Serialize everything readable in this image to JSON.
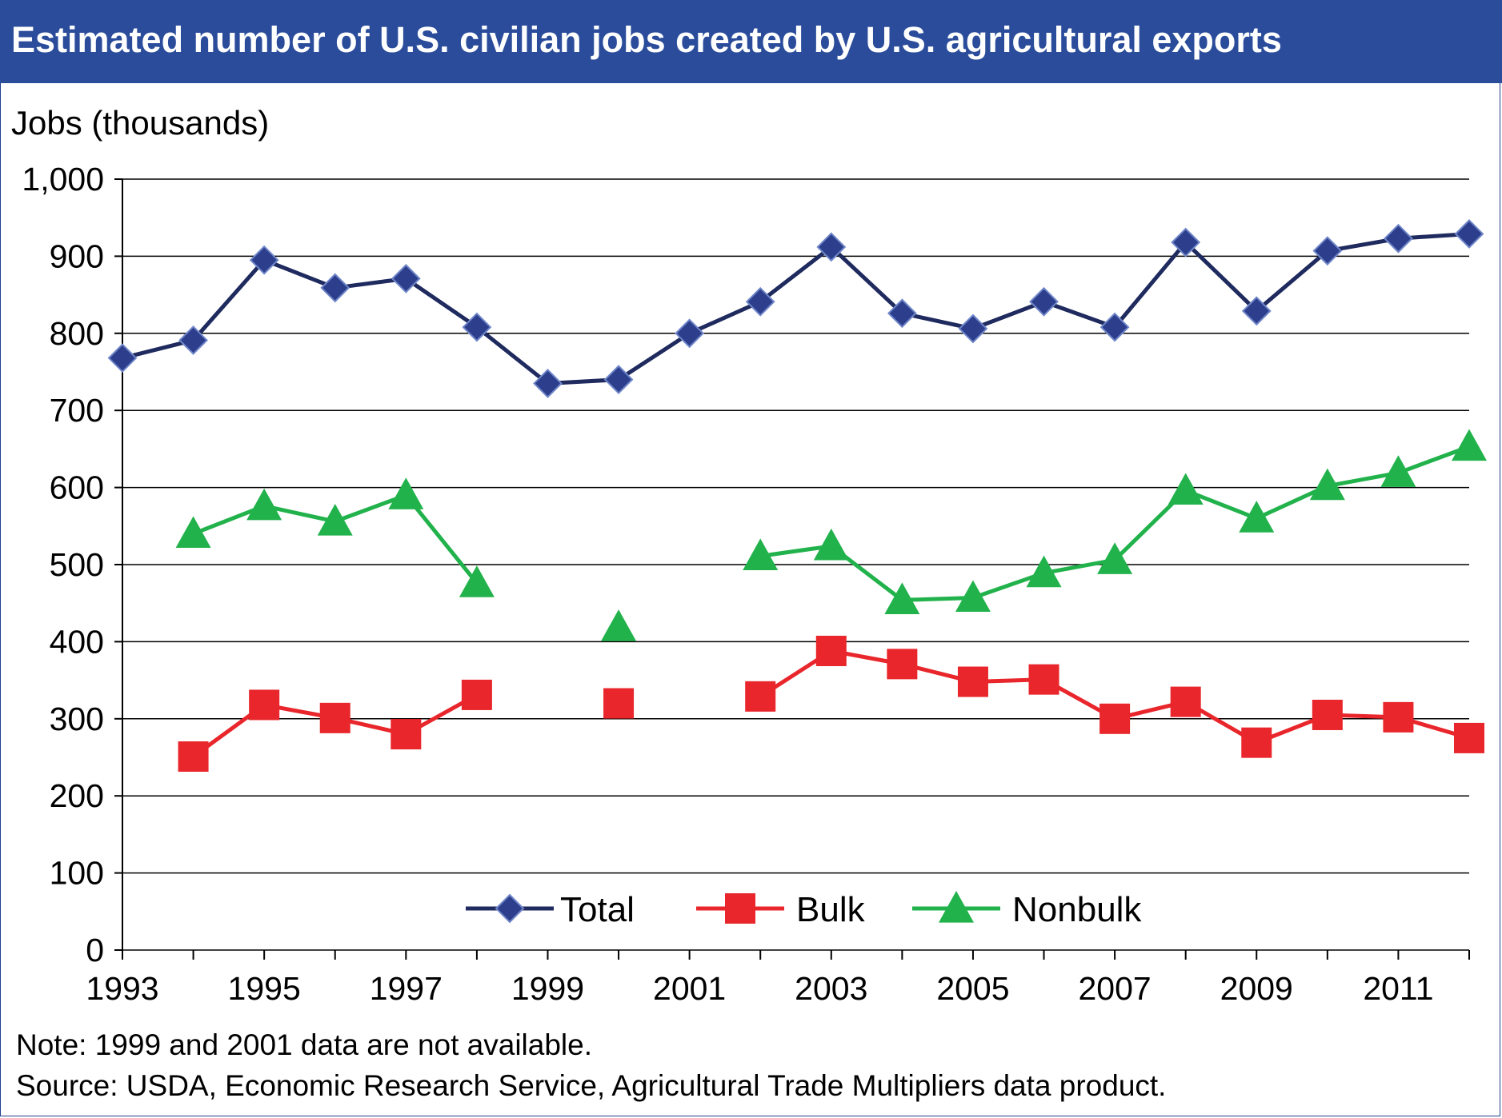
{
  "title": "Estimated number of U.S. civilian jobs created by U.S. agricultural exports",
  "note": "Note: 1999 and 2001 data are not available.",
  "source": "Source: USDA, Economic Research Service, Agricultural Trade Multipliers data product.",
  "colors": {
    "title_bar": "#2a4c9b",
    "total": "#1f2a5e",
    "total_marker": "#2d3f8c",
    "bulk": "#e8262b",
    "nonbulk": "#22b24c",
    "grid": "#000000"
  },
  "chart_data": {
    "type": "line",
    "title": "Estimated number of U.S. civilian jobs created by U.S. agricultural exports",
    "ylabel": "Jobs (thousands)",
    "xlabel": "",
    "ylim": [
      0,
      1000
    ],
    "xlim": [
      1993,
      2012
    ],
    "yticks": [
      0,
      100,
      200,
      300,
      400,
      500,
      600,
      700,
      800,
      900,
      1000
    ],
    "ytick_labels": [
      "0",
      "100",
      "200",
      "300",
      "400",
      "500",
      "600",
      "700",
      "800",
      "900",
      "1,000"
    ],
    "xticks": [
      1993,
      1995,
      1997,
      1999,
      2001,
      2003,
      2005,
      2007,
      2009,
      2011
    ],
    "xtick_labels": [
      "1993",
      "1995",
      "1997",
      "1999",
      "2001",
      "2003",
      "2005",
      "2007",
      "2009",
      "2011"
    ],
    "grid": true,
    "legend_position": "bottom-center",
    "x": [
      1993,
      1994,
      1995,
      1996,
      1997,
      1998,
      1999,
      2000,
      2001,
      2002,
      2003,
      2004,
      2005,
      2006,
      2007,
      2008,
      2009,
      2010,
      2011,
      2012
    ],
    "series": [
      {
        "name": "Total",
        "marker": "diamond",
        "values": [
          768,
          791,
          895,
          859,
          871,
          808,
          735,
          740,
          800,
          841,
          912,
          826,
          806,
          841,
          808,
          918,
          829,
          907,
          923,
          929
        ]
      },
      {
        "name": "Bulk",
        "marker": "square",
        "values": [
          null,
          251,
          318,
          301,
          280,
          331,
          null,
          320,
          null,
          329,
          388,
          371,
          348,
          351,
          300,
          322,
          269,
          305,
          302,
          275
        ]
      },
      {
        "name": "Nonbulk",
        "marker": "triangle",
        "values": [
          null,
          540,
          576,
          556,
          590,
          476,
          null,
          419,
          null,
          511,
          524,
          454,
          457,
          489,
          506,
          596,
          560,
          602,
          619,
          653
        ]
      }
    ]
  }
}
